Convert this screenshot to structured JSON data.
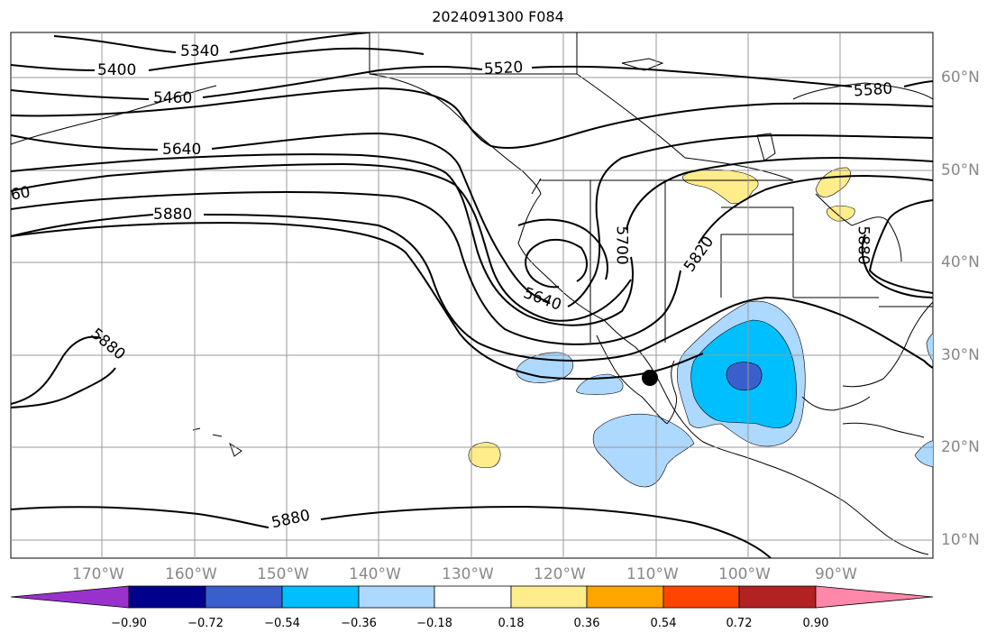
{
  "title": "2024091300 F084",
  "longitude_ticks": [
    "170°W",
    "160°W",
    "150°W",
    "140°W",
    "130°W",
    "120°W",
    "110°W",
    "100°W",
    "90°W"
  ],
  "latitude_ticks": [
    "60°N",
    "50°N",
    "40°N",
    "30°N",
    "20°N",
    "10°N"
  ],
  "contour_labels": [
    "5340",
    "5400",
    "5460",
    "5520",
    "5580",
    "5640",
    "60",
    "5880",
    "5880",
    "5880",
    "5640",
    "5700",
    "5820",
    "5880"
  ],
  "colorbar": {
    "tick_labels": [
      "−0.90",
      "−0.72",
      "−0.54",
      "−0.36",
      "−0.18",
      "0.18",
      "0.36",
      "0.54",
      "0.72",
      "0.90"
    ],
    "colors": [
      "#9932cc",
      "#00008b",
      "#3a5fcd",
      "#00bfff",
      "#add8ff",
      "#ffffff",
      "#ffec8b",
      "#ffa500",
      "#ff4500",
      "#b22222",
      "#ff88aa"
    ]
  },
  "marker": {
    "type": "black-dot"
  },
  "colors": {
    "contour": "#000000",
    "grid": "#999999",
    "label": "#888888"
  }
}
